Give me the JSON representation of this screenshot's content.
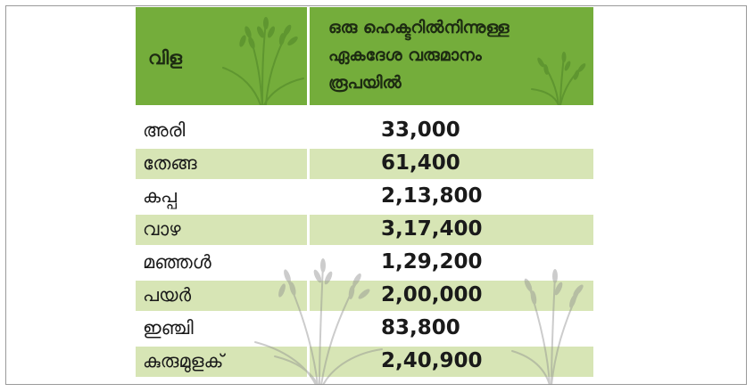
{
  "table": {
    "header": {
      "crop_label": "വിള",
      "income_label_lines": [
        "ഒരു ഹെക്ടറിൽനിന്നുള്ള",
        "ഏകദേശ വരുമാനം",
        "രൂപയിൽ"
      ]
    },
    "rows": [
      {
        "crop": "അരി",
        "income": "33,000"
      },
      {
        "crop": "തേങ്ങ",
        "income": "61,400"
      },
      {
        "crop": "കപ്പ",
        "income": "2,13,800"
      },
      {
        "crop": "വാഴ",
        "income": "3,17,400"
      },
      {
        "crop": "മഞ്ഞൾ",
        "income": "1,29,200"
      },
      {
        "crop": "പയർ",
        "income": "2,00,000"
      },
      {
        "crop": "ഇഞ്ചി",
        "income": "83,800"
      },
      {
        "crop": "കുരുമുളക്",
        "income": "2,40,900"
      }
    ]
  },
  "colors": {
    "header_green": "#74ad3b",
    "row_shade": "#d7e5b5",
    "text_dark": "#1a1a1a"
  },
  "icons": [
    "paddy-stalk-icon",
    "paddy-stalk-icon-small",
    "paddy-plant-watermark-icon"
  ]
}
